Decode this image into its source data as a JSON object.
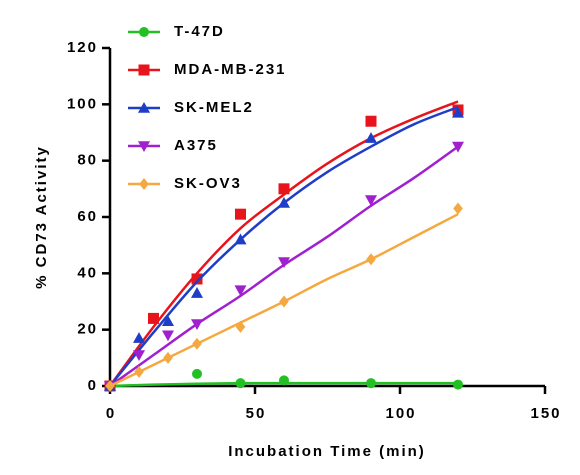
{
  "chart_data": {
    "type": "scatter",
    "xlabel": "Incubation Time (min)",
    "ylabel": "% CD73 Activity",
    "xlim": [
      0,
      150
    ],
    "ylim": [
      0,
      120
    ],
    "xticks": [
      0,
      50,
      100,
      150
    ],
    "yticks": [
      0,
      20,
      40,
      60,
      80,
      100,
      120
    ],
    "legend": "upper left",
    "fit_x": [
      0,
      15,
      30,
      45,
      60,
      75,
      90,
      105,
      120
    ],
    "series": [
      {
        "name": "T-47D",
        "color": "#22c022",
        "marker": "circle",
        "x": [
          0,
          30,
          45,
          60,
          90,
          120
        ],
        "values": [
          0,
          4.3,
          1,
          2,
          1,
          0.5
        ],
        "fit": [
          0,
          0.5,
          0.8,
          1,
          1,
          1,
          1,
          1,
          1
        ]
      },
      {
        "name": "MDA-MB-231",
        "color": "#e8141b",
        "marker": "square",
        "x": [
          0,
          15,
          30,
          45,
          60,
          90,
          120
        ],
        "values": [
          0,
          24,
          38,
          61,
          70,
          94,
          98
        ],
        "fit": [
          0,
          21,
          40,
          56,
          68,
          79,
          88,
          95,
          101
        ]
      },
      {
        "name": "SK-MEL2",
        "color": "#1f3ec8",
        "marker": "triangle",
        "x": [
          0,
          10,
          20,
          30,
          45,
          60,
          90,
          120
        ],
        "values": [
          0,
          17,
          23,
          33,
          52,
          65,
          88,
          97
        ],
        "fit": [
          0,
          19,
          37,
          52,
          65,
          76,
          85,
          93,
          99
        ]
      },
      {
        "name": "A375",
        "color": "#a020d0",
        "marker": "triangle-down",
        "x": [
          0,
          10,
          20,
          30,
          45,
          60,
          90,
          120
        ],
        "values": [
          0,
          11,
          18,
          22,
          34,
          44,
          66,
          85
        ],
        "fit": [
          0,
          11,
          22,
          32,
          43,
          53,
          64,
          74,
          85
        ]
      },
      {
        "name": "SK-OV3",
        "color": "#f5a840",
        "marker": "diamond",
        "x": [
          0,
          10,
          20,
          30,
          45,
          60,
          90,
          120
        ],
        "values": [
          0,
          5,
          10,
          15,
          21,
          30,
          45,
          63
        ],
        "fit": [
          0,
          7.5,
          15,
          22.5,
          30,
          38,
          45,
          53,
          61
        ]
      }
    ]
  }
}
